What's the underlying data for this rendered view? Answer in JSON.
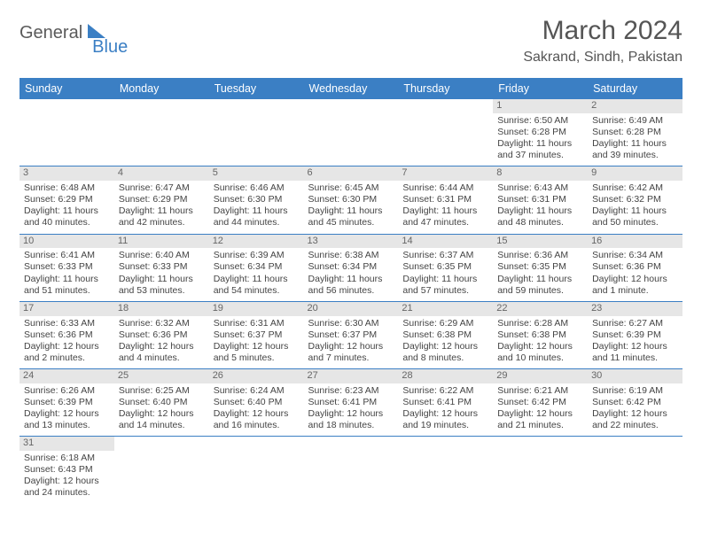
{
  "logo": {
    "text1": "General",
    "text2": "Blue"
  },
  "title": "March 2024",
  "location": "Sakrand, Sindh, Pakistan",
  "colors": {
    "header_bg": "#3b7fc4",
    "daynum_bg": "#e6e6e6",
    "row_divider": "#3b7fc4",
    "text": "#444444"
  },
  "weekdays": [
    "Sunday",
    "Monday",
    "Tuesday",
    "Wednesday",
    "Thursday",
    "Friday",
    "Saturday"
  ],
  "first_weekday_index": 5,
  "days": [
    {
      "n": "1",
      "sunrise": "Sunrise: 6:50 AM",
      "sunset": "Sunset: 6:28 PM",
      "daylight": "Daylight: 11 hours and 37 minutes."
    },
    {
      "n": "2",
      "sunrise": "Sunrise: 6:49 AM",
      "sunset": "Sunset: 6:28 PM",
      "daylight": "Daylight: 11 hours and 39 minutes."
    },
    {
      "n": "3",
      "sunrise": "Sunrise: 6:48 AM",
      "sunset": "Sunset: 6:29 PM",
      "daylight": "Daylight: 11 hours and 40 minutes."
    },
    {
      "n": "4",
      "sunrise": "Sunrise: 6:47 AM",
      "sunset": "Sunset: 6:29 PM",
      "daylight": "Daylight: 11 hours and 42 minutes."
    },
    {
      "n": "5",
      "sunrise": "Sunrise: 6:46 AM",
      "sunset": "Sunset: 6:30 PM",
      "daylight": "Daylight: 11 hours and 44 minutes."
    },
    {
      "n": "6",
      "sunrise": "Sunrise: 6:45 AM",
      "sunset": "Sunset: 6:30 PM",
      "daylight": "Daylight: 11 hours and 45 minutes."
    },
    {
      "n": "7",
      "sunrise": "Sunrise: 6:44 AM",
      "sunset": "Sunset: 6:31 PM",
      "daylight": "Daylight: 11 hours and 47 minutes."
    },
    {
      "n": "8",
      "sunrise": "Sunrise: 6:43 AM",
      "sunset": "Sunset: 6:31 PM",
      "daylight": "Daylight: 11 hours and 48 minutes."
    },
    {
      "n": "9",
      "sunrise": "Sunrise: 6:42 AM",
      "sunset": "Sunset: 6:32 PM",
      "daylight": "Daylight: 11 hours and 50 minutes."
    },
    {
      "n": "10",
      "sunrise": "Sunrise: 6:41 AM",
      "sunset": "Sunset: 6:33 PM",
      "daylight": "Daylight: 11 hours and 51 minutes."
    },
    {
      "n": "11",
      "sunrise": "Sunrise: 6:40 AM",
      "sunset": "Sunset: 6:33 PM",
      "daylight": "Daylight: 11 hours and 53 minutes."
    },
    {
      "n": "12",
      "sunrise": "Sunrise: 6:39 AM",
      "sunset": "Sunset: 6:34 PM",
      "daylight": "Daylight: 11 hours and 54 minutes."
    },
    {
      "n": "13",
      "sunrise": "Sunrise: 6:38 AM",
      "sunset": "Sunset: 6:34 PM",
      "daylight": "Daylight: 11 hours and 56 minutes."
    },
    {
      "n": "14",
      "sunrise": "Sunrise: 6:37 AM",
      "sunset": "Sunset: 6:35 PM",
      "daylight": "Daylight: 11 hours and 57 minutes."
    },
    {
      "n": "15",
      "sunrise": "Sunrise: 6:36 AM",
      "sunset": "Sunset: 6:35 PM",
      "daylight": "Daylight: 11 hours and 59 minutes."
    },
    {
      "n": "16",
      "sunrise": "Sunrise: 6:34 AM",
      "sunset": "Sunset: 6:36 PM",
      "daylight": "Daylight: 12 hours and 1 minute."
    },
    {
      "n": "17",
      "sunrise": "Sunrise: 6:33 AM",
      "sunset": "Sunset: 6:36 PM",
      "daylight": "Daylight: 12 hours and 2 minutes."
    },
    {
      "n": "18",
      "sunrise": "Sunrise: 6:32 AM",
      "sunset": "Sunset: 6:36 PM",
      "daylight": "Daylight: 12 hours and 4 minutes."
    },
    {
      "n": "19",
      "sunrise": "Sunrise: 6:31 AM",
      "sunset": "Sunset: 6:37 PM",
      "daylight": "Daylight: 12 hours and 5 minutes."
    },
    {
      "n": "20",
      "sunrise": "Sunrise: 6:30 AM",
      "sunset": "Sunset: 6:37 PM",
      "daylight": "Daylight: 12 hours and 7 minutes."
    },
    {
      "n": "21",
      "sunrise": "Sunrise: 6:29 AM",
      "sunset": "Sunset: 6:38 PM",
      "daylight": "Daylight: 12 hours and 8 minutes."
    },
    {
      "n": "22",
      "sunrise": "Sunrise: 6:28 AM",
      "sunset": "Sunset: 6:38 PM",
      "daylight": "Daylight: 12 hours and 10 minutes."
    },
    {
      "n": "23",
      "sunrise": "Sunrise: 6:27 AM",
      "sunset": "Sunset: 6:39 PM",
      "daylight": "Daylight: 12 hours and 11 minutes."
    },
    {
      "n": "24",
      "sunrise": "Sunrise: 6:26 AM",
      "sunset": "Sunset: 6:39 PM",
      "daylight": "Daylight: 12 hours and 13 minutes."
    },
    {
      "n": "25",
      "sunrise": "Sunrise: 6:25 AM",
      "sunset": "Sunset: 6:40 PM",
      "daylight": "Daylight: 12 hours and 14 minutes."
    },
    {
      "n": "26",
      "sunrise": "Sunrise: 6:24 AM",
      "sunset": "Sunset: 6:40 PM",
      "daylight": "Daylight: 12 hours and 16 minutes."
    },
    {
      "n": "27",
      "sunrise": "Sunrise: 6:23 AM",
      "sunset": "Sunset: 6:41 PM",
      "daylight": "Daylight: 12 hours and 18 minutes."
    },
    {
      "n": "28",
      "sunrise": "Sunrise: 6:22 AM",
      "sunset": "Sunset: 6:41 PM",
      "daylight": "Daylight: 12 hours and 19 minutes."
    },
    {
      "n": "29",
      "sunrise": "Sunrise: 6:21 AM",
      "sunset": "Sunset: 6:42 PM",
      "daylight": "Daylight: 12 hours and 21 minutes."
    },
    {
      "n": "30",
      "sunrise": "Sunrise: 6:19 AM",
      "sunset": "Sunset: 6:42 PM",
      "daylight": "Daylight: 12 hours and 22 minutes."
    },
    {
      "n": "31",
      "sunrise": "Sunrise: 6:18 AM",
      "sunset": "Sunset: 6:43 PM",
      "daylight": "Daylight: 12 hours and 24 minutes."
    }
  ]
}
